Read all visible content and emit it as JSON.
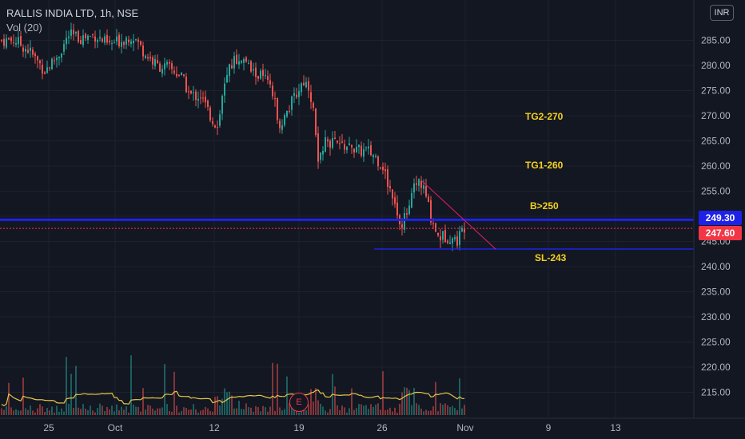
{
  "header": {
    "symbol": "RALLIS INDIA LTD, 1h, NSE",
    "indicator": "Vol (20)"
  },
  "currency_badge": "INR",
  "price_tags": {
    "level": "249.30",
    "last": "247.60"
  },
  "annotations": [
    "TG2-270",
    "TG1-260",
    "B>250",
    "SL-243"
  ],
  "earnings_marker": "E",
  "colors": {
    "background": "#131722",
    "up": "#26a69a",
    "down": "#ef5350",
    "level_line": "#1e22e8",
    "last_price": "#f23645",
    "trendline": "#e91e63",
    "volume_ma": "#e8c547",
    "annotation": "#f5d020"
  },
  "chart_data": {
    "type": "candlestick",
    "title": "RALLIS INDIA LTD, 1h, NSE",
    "y_axis": {
      "ticks": [
        "285.00",
        "280.00",
        "275.00",
        "270.00",
        "265.00",
        "260.00",
        "255.00",
        "250.00",
        "245.00",
        "240.00",
        "235.00",
        "230.00",
        "225.00",
        "220.00",
        "215.00"
      ],
      "range": [
        212,
        291
      ],
      "position": "right"
    },
    "x_axis": {
      "ticks": [
        "25",
        "Oct",
        "12",
        "19",
        "26",
        "Nov",
        "9",
        "13"
      ]
    },
    "legend_position": "top-left",
    "grid": true,
    "price_path": [
      [
        0,
        285
      ],
      [
        18,
        285
      ],
      [
        35,
        283
      ],
      [
        55,
        279
      ],
      [
        72,
        282
      ],
      [
        85,
        286
      ],
      [
        100,
        285.5
      ],
      [
        118,
        286
      ],
      [
        135,
        284
      ],
      [
        150,
        285
      ],
      [
        165,
        286
      ],
      [
        180,
        282.5
      ],
      [
        195,
        280
      ],
      [
        210,
        279.5
      ],
      [
        225,
        278
      ],
      [
        237,
        274
      ],
      [
        250,
        274
      ],
      [
        262,
        270
      ],
      [
        270,
        268
      ],
      [
        280,
        276
      ],
      [
        290,
        281
      ],
      [
        302,
        281.5
      ],
      [
        315,
        278.5
      ],
      [
        325,
        278
      ],
      [
        332,
        277
      ],
      [
        340,
        274
      ],
      [
        350,
        268
      ],
      [
        362,
        272
      ],
      [
        372,
        275
      ],
      [
        378,
        277
      ],
      [
        385,
        276
      ],
      [
        392,
        271
      ],
      [
        396,
        260
      ],
      [
        402,
        264
      ],
      [
        410,
        265
      ],
      [
        420,
        264
      ],
      [
        432,
        264
      ],
      [
        445,
        263
      ],
      [
        458,
        263
      ],
      [
        468,
        262
      ],
      [
        478,
        260
      ],
      [
        485,
        256
      ],
      [
        492,
        254
      ],
      [
        500,
        248
      ],
      [
        508,
        251
      ],
      [
        516,
        255
      ],
      [
        523,
        257
      ],
      [
        530,
        255
      ],
      [
        538,
        250
      ],
      [
        547,
        246
      ],
      [
        555,
        246
      ],
      [
        562,
        246
      ],
      [
        570,
        245
      ],
      [
        580,
        248
      ]
    ],
    "horizontal_levels": [
      {
        "value": 249.3
      },
      {
        "value": 247.6
      },
      {
        "value": 243.5
      }
    ],
    "trendline": {
      "from": [
        528,
        257
      ],
      "to": [
        620,
        243.5
      ]
    },
    "volume": {
      "series_name": "Vol (20)"
    }
  }
}
